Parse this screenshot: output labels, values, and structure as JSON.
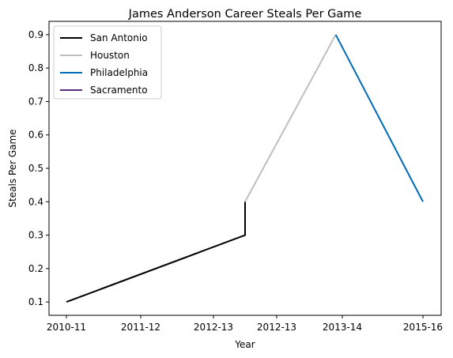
{
  "chart_data": {
    "type": "line",
    "title": "James Anderson  Career Steals Per Game",
    "xlabel": "Year",
    "ylabel": "Steals Per Game",
    "categories": [
      "2010-11",
      "2011-12",
      "2012-13",
      "2012-13",
      "2013-14",
      "2015-16"
    ],
    "ylim": [
      0.06,
      0.94
    ],
    "yticks": [
      "0.1",
      "0.2",
      "0.3",
      "0.4",
      "0.5",
      "0.6",
      "0.7",
      "0.8",
      "0.9"
    ],
    "grid": false,
    "legend_position": "top-left",
    "series": [
      {
        "name": "San Antonio",
        "color": "#000000",
        "points": [
          {
            "x": "2010-11",
            "y": 0.1
          },
          {
            "x": "2012-13",
            "y": 0.3
          },
          {
            "x": "2012-13",
            "y": 0.4
          }
        ]
      },
      {
        "name": "Houston",
        "color": "#bfbfbf",
        "points": [
          {
            "x": "2012-13",
            "y": 0.4
          },
          {
            "x": "2013-14",
            "y": 0.9
          }
        ]
      },
      {
        "name": "Philadelphia",
        "color": "#006bb6",
        "points": [
          {
            "x": "2013-14",
            "y": 0.9
          },
          {
            "x": "2015-16",
            "y": 0.4
          }
        ]
      },
      {
        "name": "Sacramento",
        "color": "#5a2d81",
        "points": []
      }
    ]
  }
}
